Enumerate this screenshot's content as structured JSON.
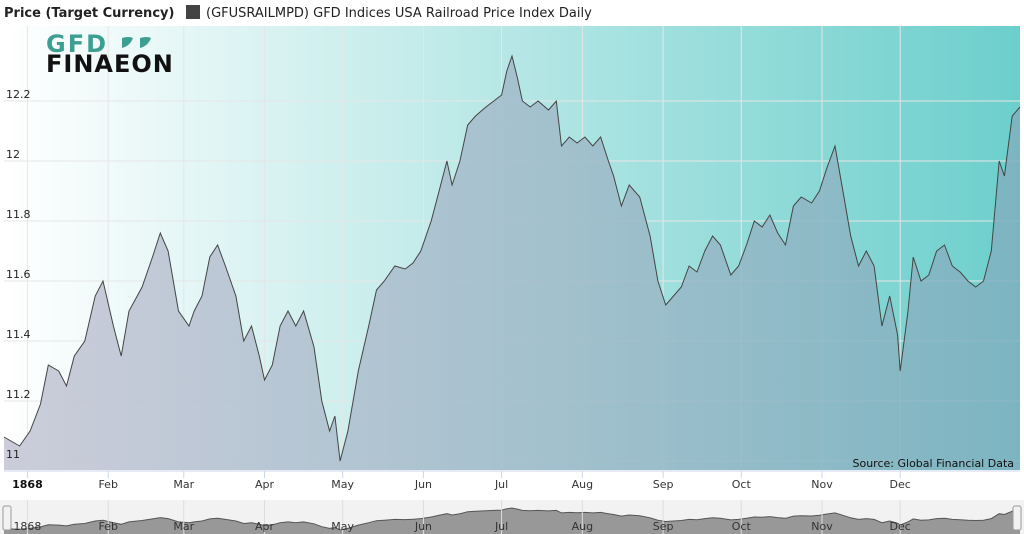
{
  "legend": {
    "title": "Price (Target Currency)",
    "series_label": "(GFUSRAILMPD) GFD Indices USA Railroad Price Index Daily",
    "swatch_color": "#444444"
  },
  "logo": {
    "line1": "GFD",
    "line2": "FINAEON",
    "accent_color": "#3d9e92"
  },
  "source": "Source: Global Financial Data",
  "colors": {
    "bg_left": "#ffffff",
    "bg_right": "#6ccfcc",
    "area_left": "#c9cad8",
    "area_right": "#7fb0bf",
    "line": "#444444"
  },
  "chart_data": {
    "type": "area",
    "title": "",
    "xlabel": "",
    "ylabel": "Price (Target Currency)",
    "ylim": [
      10.97,
      12.45
    ],
    "yticks": [
      "11",
      "11.2",
      "11.4",
      "11.6",
      "11.8",
      "12",
      "12.2"
    ],
    "xticks": [
      {
        "label": "1868",
        "x": "1868-01-01"
      },
      {
        "label": "Feb",
        "x": "1868-02-01"
      },
      {
        "label": "Mar",
        "x": "1868-03-01"
      },
      {
        "label": "Apr",
        "x": "1868-04-01"
      },
      {
        "label": "May",
        "x": "1868-05-01"
      },
      {
        "label": "Jun",
        "x": "1868-06-01"
      },
      {
        "label": "Jul",
        "x": "1868-07-01"
      },
      {
        "label": "Aug",
        "x": "1868-08-01"
      },
      {
        "label": "Sep",
        "x": "1868-09-01"
      },
      {
        "label": "Oct",
        "x": "1868-10-01"
      },
      {
        "label": "Nov",
        "x": "1868-11-01"
      },
      {
        "label": "Dec",
        "x": "1868-12-01"
      }
    ],
    "series": [
      {
        "name": "(GFUSRAILMPD) GFD Indices USA Railroad Price Index Daily",
        "points": [
          [
            "1867-12-23",
            11.08
          ],
          [
            "1867-12-29",
            11.05
          ],
          [
            "1868-01-02",
            11.1
          ],
          [
            "1868-01-06",
            11.19
          ],
          [
            "1868-01-09",
            11.32
          ],
          [
            "1868-01-13",
            11.3
          ],
          [
            "1868-01-16",
            11.25
          ],
          [
            "1868-01-19",
            11.35
          ],
          [
            "1868-01-23",
            11.4
          ],
          [
            "1868-01-27",
            11.55
          ],
          [
            "1868-01-30",
            11.6
          ],
          [
            "1868-02-03",
            11.45
          ],
          [
            "1868-02-06",
            11.35
          ],
          [
            "1868-02-09",
            11.5
          ],
          [
            "1868-02-14",
            11.58
          ],
          [
            "1868-02-18",
            11.68
          ],
          [
            "1868-02-21",
            11.76
          ],
          [
            "1868-02-24",
            11.7
          ],
          [
            "1868-02-28",
            11.5
          ],
          [
            "1868-03-03",
            11.45
          ],
          [
            "1868-03-05",
            11.5
          ],
          [
            "1868-03-08",
            11.55
          ],
          [
            "1868-03-11",
            11.68
          ],
          [
            "1868-03-14",
            11.72
          ],
          [
            "1868-03-17",
            11.65
          ],
          [
            "1868-03-21",
            11.55
          ],
          [
            "1868-03-24",
            11.4
          ],
          [
            "1868-03-27",
            11.45
          ],
          [
            "1868-03-30",
            11.35
          ],
          [
            "1868-04-01",
            11.27
          ],
          [
            "1868-04-04",
            11.32
          ],
          [
            "1868-04-07",
            11.45
          ],
          [
            "1868-04-10",
            11.5
          ],
          [
            "1868-04-13",
            11.45
          ],
          [
            "1868-04-16",
            11.5
          ],
          [
            "1868-04-20",
            11.38
          ],
          [
            "1868-04-23",
            11.2
          ],
          [
            "1868-04-26",
            11.1
          ],
          [
            "1868-04-28",
            11.15
          ],
          [
            "1868-04-30",
            11.0
          ],
          [
            "1868-05-03",
            11.1
          ],
          [
            "1868-05-07",
            11.3
          ],
          [
            "1868-05-11",
            11.45
          ],
          [
            "1868-05-14",
            11.57
          ],
          [
            "1868-05-17",
            11.6
          ],
          [
            "1868-05-21",
            11.65
          ],
          [
            "1868-05-25",
            11.64
          ],
          [
            "1868-05-28",
            11.66
          ],
          [
            "1868-05-31",
            11.7
          ],
          [
            "1868-06-04",
            11.8
          ],
          [
            "1868-06-07",
            11.9
          ],
          [
            "1868-06-10",
            12.0
          ],
          [
            "1868-06-12",
            11.92
          ],
          [
            "1868-06-15",
            12.0
          ],
          [
            "1868-06-18",
            12.12
          ],
          [
            "1868-06-21",
            12.15
          ],
          [
            "1868-06-25",
            12.18
          ],
          [
            "1868-06-28",
            12.2
          ],
          [
            "1868-07-01",
            12.22
          ],
          [
            "1868-07-03",
            12.3
          ],
          [
            "1868-07-05",
            12.35
          ],
          [
            "1868-07-07",
            12.28
          ],
          [
            "1868-07-09",
            12.2
          ],
          [
            "1868-07-12",
            12.18
          ],
          [
            "1868-07-15",
            12.2
          ],
          [
            "1868-07-19",
            12.17
          ],
          [
            "1868-07-22",
            12.2
          ],
          [
            "1868-07-24",
            12.05
          ],
          [
            "1868-07-27",
            12.08
          ],
          [
            "1868-07-30",
            12.06
          ],
          [
            "1868-08-02",
            12.08
          ],
          [
            "1868-08-05",
            12.05
          ],
          [
            "1868-08-08",
            12.08
          ],
          [
            "1868-08-11",
            12.0
          ],
          [
            "1868-08-13",
            11.95
          ],
          [
            "1868-08-16",
            11.85
          ],
          [
            "1868-08-19",
            11.92
          ],
          [
            "1868-08-23",
            11.88
          ],
          [
            "1868-08-27",
            11.75
          ],
          [
            "1868-08-30",
            11.6
          ],
          [
            "1868-09-02",
            11.52
          ],
          [
            "1868-09-05",
            11.55
          ],
          [
            "1868-09-08",
            11.58
          ],
          [
            "1868-09-11",
            11.65
          ],
          [
            "1868-09-14",
            11.63
          ],
          [
            "1868-09-17",
            11.7
          ],
          [
            "1868-09-20",
            11.75
          ],
          [
            "1868-09-23",
            11.72
          ],
          [
            "1868-09-27",
            11.62
          ],
          [
            "1868-09-30",
            11.65
          ],
          [
            "1868-10-03",
            11.72
          ],
          [
            "1868-10-06",
            11.8
          ],
          [
            "1868-10-09",
            11.78
          ],
          [
            "1868-10-12",
            11.82
          ],
          [
            "1868-10-15",
            11.76
          ],
          [
            "1868-10-18",
            11.72
          ],
          [
            "1868-10-21",
            11.85
          ],
          [
            "1868-10-24",
            11.88
          ],
          [
            "1868-10-28",
            11.86
          ],
          [
            "1868-10-31",
            11.9
          ],
          [
            "1868-11-03",
            11.98
          ],
          [
            "1868-11-06",
            12.05
          ],
          [
            "1868-11-09",
            11.9
          ],
          [
            "1868-11-12",
            11.75
          ],
          [
            "1868-11-15",
            11.65
          ],
          [
            "1868-11-18",
            11.7
          ],
          [
            "1868-11-21",
            11.65
          ],
          [
            "1868-11-24",
            11.45
          ],
          [
            "1868-11-27",
            11.55
          ],
          [
            "1868-11-30",
            11.42
          ],
          [
            "1868-12-01",
            11.3
          ],
          [
            "1868-12-04",
            11.5
          ],
          [
            "1868-12-06",
            11.68
          ],
          [
            "1868-12-09",
            11.6
          ],
          [
            "1868-12-12",
            11.62
          ],
          [
            "1868-12-15",
            11.7
          ],
          [
            "1868-12-18",
            11.72
          ],
          [
            "1868-12-21",
            11.65
          ],
          [
            "1868-12-24",
            11.63
          ],
          [
            "1868-12-27",
            11.6
          ],
          [
            "1868-12-30",
            11.58
          ],
          [
            "1869-01-02",
            11.6
          ],
          [
            "1869-01-05",
            11.7
          ],
          [
            "1869-01-08",
            12.0
          ],
          [
            "1869-01-10",
            11.95
          ],
          [
            "1869-01-13",
            12.15
          ],
          [
            "1869-01-16",
            12.18
          ]
        ]
      }
    ],
    "navigator_ticks": [
      "1868",
      "Feb",
      "Mar",
      "Apr",
      "May",
      "Jun",
      "Jul",
      "Aug",
      "Sep",
      "Oct",
      "Nov",
      "Dec"
    ],
    "grid": {
      "x": true,
      "y": true
    },
    "legend_position": "top-left"
  }
}
